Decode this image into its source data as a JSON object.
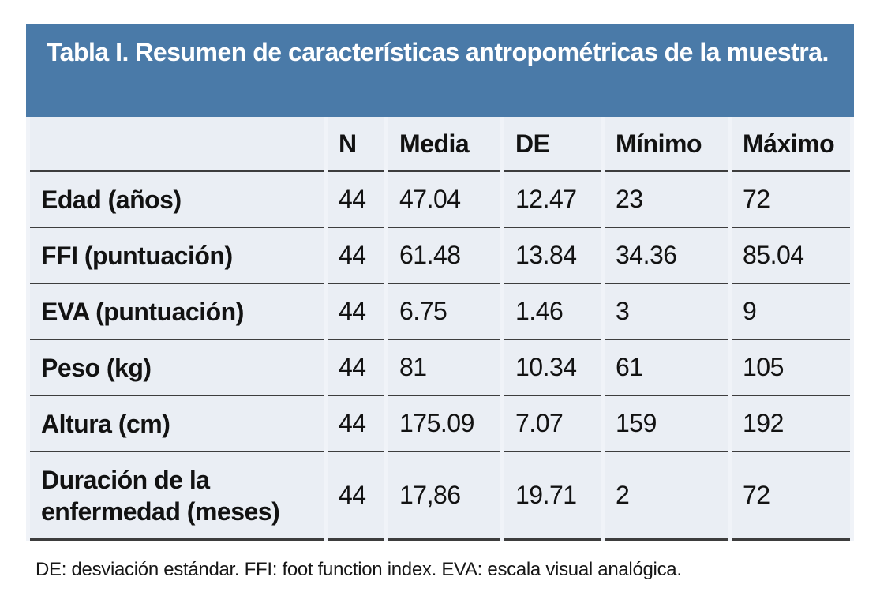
{
  "chart_data": {
    "type": "table",
    "title": "Tabla I. Resumen de características antropométricas de la muestra.",
    "columns": [
      "",
      "N",
      "Media",
      "DE",
      "Mínimo",
      "Máximo"
    ],
    "rows": [
      {
        "label": "Edad (años)",
        "values": [
          "44",
          "47.04",
          "12.47",
          "23",
          "72"
        ]
      },
      {
        "label": "FFI (puntuación)",
        "values": [
          "44",
          "61.48",
          "13.84",
          "34.36",
          "85.04"
        ]
      },
      {
        "label": "EVA (puntuación)",
        "values": [
          "44",
          "6.75",
          "1.46",
          "3",
          "9"
        ]
      },
      {
        "label": "Peso (kg)",
        "values": [
          "44",
          "81",
          "10.34",
          "61",
          "105"
        ]
      },
      {
        "label": "Altura (cm)",
        "values": [
          "44",
          "175.09",
          "7.07",
          "159",
          "192"
        ]
      },
      {
        "label": "Duración de la enfermedad (meses)",
        "values": [
          "44",
          "17,86",
          "19.71",
          "2",
          "72"
        ]
      }
    ],
    "footnote": "DE: desviación estándar. FFI: foot function index. EVA: escala visual analógica.",
    "legend_position": "none",
    "grid": "horizontal-rules-only"
  },
  "colors": {
    "title_bg": "#4a7aa8",
    "title_text": "#ffffff",
    "body_bg": "#f0f3f8",
    "cell_bg": "#eaeef4",
    "rule": "#3d3d3d",
    "text": "#121212",
    "page_bg": "#ffffff"
  }
}
